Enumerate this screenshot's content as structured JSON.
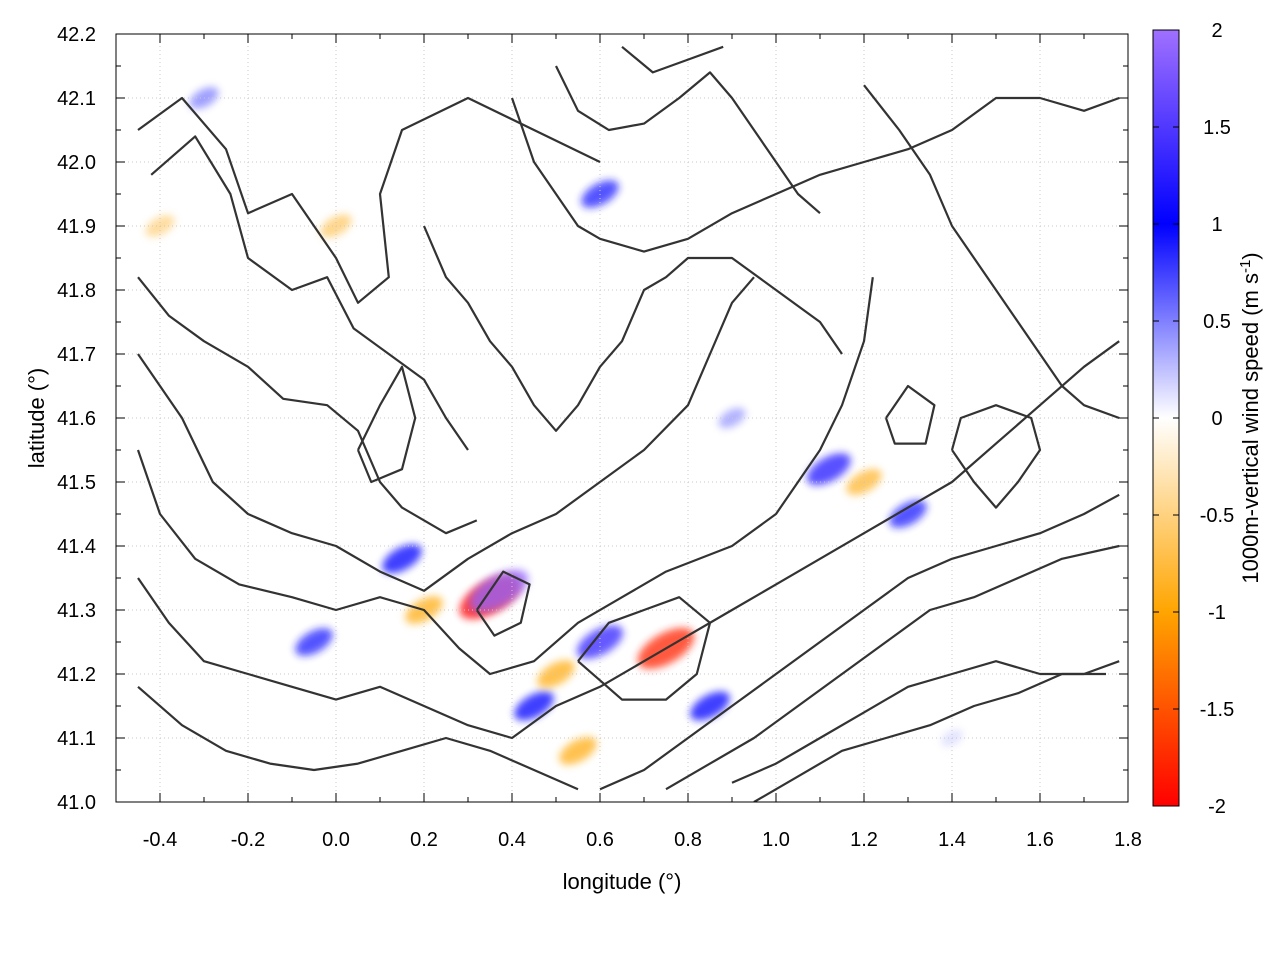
{
  "chart_data": {
    "type": "heatmap",
    "title": "",
    "xlabel": "longitude (°)",
    "ylabel": "latitude (°)",
    "xlim": [
      -0.5,
      1.8
    ],
    "ylim": [
      41.0,
      42.2
    ],
    "x_ticks": [
      "-0.4",
      "-0.2",
      "0.0",
      "0.2",
      "0.4",
      "0.6",
      "0.8",
      "1.0",
      "1.2",
      "1.4",
      "1.6",
      "1.8"
    ],
    "y_ticks": [
      "41.0",
      "41.1",
      "41.2",
      "41.3",
      "41.4",
      "41.5",
      "41.6",
      "41.7",
      "41.8",
      "41.9",
      "42.0",
      "42.1",
      "42.2"
    ],
    "grid": true,
    "colorbar": {
      "label": "1000m-vertical wind speed (m s",
      "label_superscript": "-1",
      "label_suffix": ")",
      "range": [
        -2,
        2
      ],
      "ticks": [
        "2",
        "1.5",
        "1",
        "0.5",
        "0",
        "-0.5",
        "-1",
        "-1.5",
        "-2"
      ],
      "colors": {
        "-2": "#ff0000",
        "-1": "#ffa500",
        "0": "#ffffff",
        "1": "#0000ff",
        "2": "#a070ff"
      }
    },
    "overlay": "black terrain contour lines",
    "hotspots": [
      {
        "lon": 0.35,
        "lat": 41.32,
        "value": -2.0
      },
      {
        "lon": 0.37,
        "lat": 41.33,
        "value": 1.9
      },
      {
        "lon": 0.75,
        "lat": 41.24,
        "value": -1.8
      },
      {
        "lon": 0.6,
        "lat": 41.25,
        "value": 1.3
      },
      {
        "lon": 1.12,
        "lat": 41.52,
        "value": 1.2
      },
      {
        "lon": 1.2,
        "lat": 41.5,
        "value": -0.8
      },
      {
        "lon": 0.45,
        "lat": 41.15,
        "value": 1.0
      },
      {
        "lon": 0.5,
        "lat": 41.2,
        "value": -0.9
      },
      {
        "lon": 0.2,
        "lat": 41.3,
        "value": -0.9
      },
      {
        "lon": 0.15,
        "lat": 41.38,
        "value": 1.0
      },
      {
        "lon": -0.05,
        "lat": 41.25,
        "value": 0.9
      },
      {
        "lon": 0.85,
        "lat": 41.15,
        "value": 1.0
      },
      {
        "lon": 0.6,
        "lat": 41.95,
        "value": 0.9
      },
      {
        "lon": -0.4,
        "lat": 41.9,
        "value": -0.5
      },
      {
        "lon": 0.9,
        "lat": 41.6,
        "value": 0.4
      },
      {
        "lon": 1.3,
        "lat": 41.45,
        "value": 0.9
      },
      {
        "lon": -0.3,
        "lat": 42.1,
        "value": 0.5
      },
      {
        "lon": 0.0,
        "lat": 41.9,
        "value": -0.6
      },
      {
        "lon": 1.4,
        "lat": 41.1,
        "value": 0.15
      },
      {
        "lon": 0.55,
        "lat": 41.08,
        "value": -0.9
      }
    ],
    "contours": [
      [
        [
          -0.45,
          42.05
        ],
        [
          -0.35,
          42.1
        ],
        [
          -0.25,
          42.02
        ],
        [
          -0.2,
          41.92
        ],
        [
          -0.1,
          41.95
        ],
        [
          0.0,
          41.85
        ],
        [
          0.05,
          41.78
        ],
        [
          0.12,
          41.82
        ],
        [
          0.1,
          41.95
        ],
        [
          0.15,
          42.05
        ],
        [
          0.3,
          42.1
        ],
        [
          0.45,
          42.05
        ],
        [
          0.6,
          42.0
        ]
      ],
      [
        [
          -0.42,
          41.98
        ],
        [
          -0.32,
          42.04
        ],
        [
          -0.24,
          41.95
        ],
        [
          -0.2,
          41.85
        ],
        [
          -0.1,
          41.8
        ],
        [
          -0.02,
          41.82
        ],
        [
          0.04,
          41.74
        ],
        [
          0.12,
          41.7
        ],
        [
          0.2,
          41.66
        ],
        [
          0.25,
          41.6
        ],
        [
          0.3,
          41.55
        ]
      ],
      [
        [
          -0.45,
          41.82
        ],
        [
          -0.38,
          41.76
        ],
        [
          -0.3,
          41.72
        ],
        [
          -0.2,
          41.68
        ],
        [
          -0.12,
          41.63
        ],
        [
          -0.02,
          41.62
        ],
        [
          0.05,
          41.58
        ],
        [
          0.1,
          41.5
        ],
        [
          0.15,
          41.46
        ],
        [
          0.25,
          41.42
        ],
        [
          0.32,
          41.44
        ]
      ],
      [
        [
          -0.45,
          41.7
        ],
        [
          -0.35,
          41.6
        ],
        [
          -0.28,
          41.5
        ],
        [
          -0.2,
          41.45
        ],
        [
          -0.1,
          41.42
        ],
        [
          0.0,
          41.4
        ],
        [
          0.1,
          41.36
        ],
        [
          0.2,
          41.33
        ],
        [
          0.3,
          41.38
        ],
        [
          0.4,
          41.42
        ],
        [
          0.5,
          41.45
        ],
        [
          0.6,
          41.5
        ],
        [
          0.7,
          41.55
        ],
        [
          0.8,
          41.62
        ],
        [
          0.85,
          41.7
        ],
        [
          0.9,
          41.78
        ],
        [
          0.95,
          41.82
        ]
      ],
      [
        [
          -0.45,
          41.55
        ],
        [
          -0.4,
          41.45
        ],
        [
          -0.32,
          41.38
        ],
        [
          -0.22,
          41.34
        ],
        [
          -0.1,
          41.32
        ],
        [
          0.0,
          41.3
        ],
        [
          0.1,
          41.32
        ],
        [
          0.2,
          41.3
        ],
        [
          0.28,
          41.24
        ],
        [
          0.35,
          41.2
        ],
        [
          0.45,
          41.22
        ],
        [
          0.55,
          41.28
        ],
        [
          0.65,
          41.32
        ],
        [
          0.75,
          41.36
        ],
        [
          0.9,
          41.4
        ],
        [
          1.0,
          41.45
        ],
        [
          1.1,
          41.55
        ],
        [
          1.15,
          41.62
        ],
        [
          1.2,
          41.72
        ],
        [
          1.22,
          41.82
        ]
      ],
      [
        [
          -0.45,
          41.35
        ],
        [
          -0.38,
          41.28
        ],
        [
          -0.3,
          41.22
        ],
        [
          -0.2,
          41.2
        ],
        [
          -0.1,
          41.18
        ],
        [
          0.0,
          41.16
        ],
        [
          0.1,
          41.18
        ],
        [
          0.2,
          41.15
        ],
        [
          0.3,
          41.12
        ],
        [
          0.4,
          41.1
        ],
        [
          0.5,
          41.15
        ],
        [
          0.6,
          41.18
        ],
        [
          0.7,
          41.22
        ],
        [
          0.8,
          41.26
        ],
        [
          0.9,
          41.3
        ],
        [
          1.0,
          41.34
        ],
        [
          1.1,
          41.38
        ],
        [
          1.2,
          41.42
        ],
        [
          1.3,
          41.46
        ],
        [
          1.4,
          41.5
        ],
        [
          1.5,
          41.56
        ],
        [
          1.6,
          41.62
        ],
        [
          1.7,
          41.68
        ],
        [
          1.78,
          41.72
        ]
      ],
      [
        [
          -0.45,
          41.18
        ],
        [
          -0.35,
          41.12
        ],
        [
          -0.25,
          41.08
        ],
        [
          -0.15,
          41.06
        ],
        [
          -0.05,
          41.05
        ],
        [
          0.05,
          41.06
        ],
        [
          0.15,
          41.08
        ],
        [
          0.25,
          41.1
        ],
        [
          0.35,
          41.08
        ],
        [
          0.45,
          41.05
        ],
        [
          0.55,
          41.02
        ]
      ],
      [
        [
          0.6,
          41.02
        ],
        [
          0.7,
          41.05
        ],
        [
          0.8,
          41.1
        ],
        [
          0.9,
          41.15
        ],
        [
          1.0,
          41.2
        ],
        [
          1.1,
          41.25
        ],
        [
          1.2,
          41.3
        ],
        [
          1.3,
          41.35
        ],
        [
          1.4,
          41.38
        ],
        [
          1.5,
          41.4
        ],
        [
          1.6,
          41.42
        ],
        [
          1.7,
          41.45
        ],
        [
          1.78,
          41.48
        ]
      ],
      [
        [
          0.75,
          41.02
        ],
        [
          0.85,
          41.06
        ],
        [
          0.95,
          41.1
        ],
        [
          1.05,
          41.15
        ],
        [
          1.15,
          41.2
        ],
        [
          1.25,
          41.25
        ],
        [
          1.35,
          41.3
        ],
        [
          1.45,
          41.32
        ],
        [
          1.55,
          41.35
        ],
        [
          1.65,
          41.38
        ],
        [
          1.78,
          41.4
        ]
      ],
      [
        [
          0.9,
          41.03
        ],
        [
          1.0,
          41.06
        ],
        [
          1.1,
          41.1
        ],
        [
          1.2,
          41.14
        ],
        [
          1.3,
          41.18
        ],
        [
          1.4,
          41.2
        ],
        [
          1.5,
          41.22
        ],
        [
          1.6,
          41.2
        ],
        [
          1.7,
          41.2
        ],
        [
          1.78,
          41.22
        ]
      ],
      [
        [
          0.95,
          41.0
        ],
        [
          1.05,
          41.04
        ],
        [
          1.15,
          41.08
        ],
        [
          1.25,
          41.1
        ],
        [
          1.35,
          41.12
        ],
        [
          1.45,
          41.15
        ],
        [
          1.55,
          41.17
        ],
        [
          1.65,
          41.2
        ],
        [
          1.75,
          41.2
        ]
      ],
      [
        [
          0.2,
          41.9
        ],
        [
          0.25,
          41.82
        ],
        [
          0.3,
          41.78
        ],
        [
          0.35,
          41.72
        ],
        [
          0.4,
          41.68
        ],
        [
          0.45,
          41.62
        ],
        [
          0.5,
          41.58
        ],
        [
          0.55,
          41.62
        ],
        [
          0.6,
          41.68
        ],
        [
          0.65,
          41.72
        ],
        [
          0.7,
          41.8
        ],
        [
          0.75,
          41.82
        ],
        [
          0.8,
          41.85
        ],
        [
          0.9,
          41.85
        ],
        [
          1.0,
          41.8
        ],
        [
          1.1,
          41.75
        ],
        [
          1.15,
          41.7
        ]
      ],
      [
        [
          0.4,
          42.1
        ],
        [
          0.45,
          42.0
        ],
        [
          0.5,
          41.95
        ],
        [
          0.55,
          41.9
        ],
        [
          0.6,
          41.88
        ],
        [
          0.7,
          41.86
        ],
        [
          0.8,
          41.88
        ],
        [
          0.9,
          41.92
        ],
        [
          1.0,
          41.95
        ],
        [
          1.1,
          41.98
        ],
        [
          1.2,
          42.0
        ],
        [
          1.3,
          42.02
        ],
        [
          1.4,
          42.05
        ],
        [
          1.5,
          42.1
        ],
        [
          1.6,
          42.1
        ],
        [
          1.7,
          42.08
        ],
        [
          1.78,
          42.1
        ]
      ],
      [
        [
          0.5,
          42.15
        ],
        [
          0.55,
          42.08
        ],
        [
          0.62,
          42.05
        ],
        [
          0.7,
          42.06
        ],
        [
          0.78,
          42.1
        ],
        [
          0.85,
          42.14
        ],
        [
          0.9,
          42.1
        ],
        [
          0.95,
          42.05
        ],
        [
          1.0,
          42.0
        ],
        [
          1.05,
          41.95
        ],
        [
          1.1,
          41.92
        ]
      ],
      [
        [
          0.65,
          42.18
        ],
        [
          0.72,
          42.14
        ],
        [
          0.8,
          42.16
        ],
        [
          0.88,
          42.18
        ]
      ],
      [
        [
          1.2,
          42.12
        ],
        [
          1.28,
          42.05
        ],
        [
          1.35,
          41.98
        ],
        [
          1.4,
          41.9
        ],
        [
          1.45,
          41.85
        ],
        [
          1.5,
          41.8
        ],
        [
          1.55,
          41.75
        ],
        [
          1.6,
          41.7
        ],
        [
          1.65,
          41.65
        ],
        [
          1.7,
          41.62
        ],
        [
          1.78,
          41.6
        ]
      ],
      [
        [
          1.4,
          41.55
        ],
        [
          1.45,
          41.5
        ],
        [
          1.5,
          41.46
        ],
        [
          1.55,
          41.5
        ],
        [
          1.6,
          41.55
        ],
        [
          1.58,
          41.6
        ],
        [
          1.5,
          41.62
        ],
        [
          1.42,
          41.6
        ],
        [
          1.4,
          41.55
        ]
      ],
      [
        [
          0.05,
          41.55
        ],
        [
          0.1,
          41.62
        ],
        [
          0.15,
          41.68
        ],
        [
          0.18,
          41.6
        ],
        [
          0.15,
          41.52
        ],
        [
          0.08,
          41.5
        ],
        [
          0.05,
          41.55
        ]
      ],
      [
        [
          0.55,
          41.22
        ],
        [
          0.62,
          41.28
        ],
        [
          0.7,
          41.3
        ],
        [
          0.78,
          41.32
        ],
        [
          0.85,
          41.28
        ],
        [
          0.82,
          41.2
        ],
        [
          0.75,
          41.16
        ],
        [
          0.65,
          41.16
        ],
        [
          0.55,
          41.22
        ]
      ],
      [
        [
          0.32,
          41.3
        ],
        [
          0.38,
          41.36
        ],
        [
          0.44,
          41.34
        ],
        [
          0.42,
          41.28
        ],
        [
          0.36,
          41.26
        ],
        [
          0.32,
          41.3
        ]
      ],
      [
        [
          1.25,
          41.6
        ],
        [
          1.3,
          41.65
        ],
        [
          1.36,
          41.62
        ],
        [
          1.34,
          41.56
        ],
        [
          1.27,
          41.56
        ],
        [
          1.25,
          41.6
        ]
      ]
    ]
  }
}
